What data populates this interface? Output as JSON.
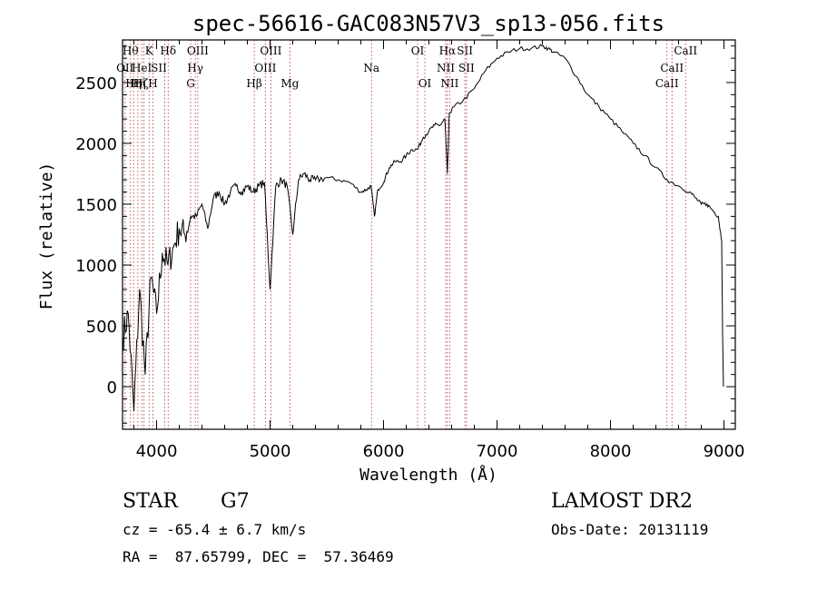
{
  "chart_data": {
    "type": "line",
    "title": "spec-56616-GAC083N57V3_sp13-056.fits",
    "xlabel": "Wavelength (Å)",
    "ylabel": "Flux (relative)",
    "xlim": [
      3700,
      9100
    ],
    "ylim": [
      -350,
      2850
    ],
    "xticks": [
      4000,
      5000,
      6000,
      7000,
      8000,
      9000
    ],
    "yticks": [
      0,
      500,
      1000,
      1500,
      2000,
      2500
    ],
    "series": [
      {
        "x": [
          3700,
          3750,
          3800,
          3850,
          3900,
          3950,
          4000,
          4050,
          4100,
          4150,
          4200,
          4250,
          4300,
          4350,
          4400,
          4450,
          4500,
          4550,
          4600,
          4650,
          4700,
          4750,
          4800,
          4850,
          4900,
          4950,
          5000,
          5050,
          5100,
          5150,
          5200,
          5250,
          5300,
          5350,
          5400,
          5500,
          5600,
          5700,
          5800,
          5850,
          5890,
          5920,
          5950,
          6000,
          6050,
          6100,
          6150,
          6200,
          6250,
          6300,
          6350,
          6400,
          6450,
          6500,
          6540,
          6563,
          6580,
          6620,
          6700,
          6800,
          6900,
          7000,
          7100,
          7200,
          7300,
          7400,
          7450,
          7500,
          7600,
          7700,
          7800,
          7900,
          8000,
          8100,
          8200,
          8300,
          8400,
          8500,
          8600,
          8700,
          8750,
          8800,
          8850,
          8900,
          8950,
          8980,
          8990,
          8995
        ],
        "y": [
          400,
          600,
          -200,
          800,
          100,
          900,
          600,
          1100,
          1000,
          1150,
          1300,
          1250,
          1400,
          1400,
          1500,
          1300,
          1550,
          1600,
          1500,
          1600,
          1650,
          1600,
          1650,
          1600,
          1650,
          1680,
          800,
          1650,
          1700,
          1650,
          1250,
          1700,
          1750,
          1700,
          1700,
          1720,
          1700,
          1680,
          1600,
          1620,
          1650,
          1400,
          1620,
          1680,
          1800,
          1850,
          1850,
          1900,
          1950,
          1950,
          2050,
          2100,
          2150,
          2150,
          2200,
          1750,
          2250,
          2300,
          2350,
          2450,
          2600,
          2700,
          2750,
          2780,
          2780,
          2800,
          2780,
          2750,
          2700,
          2550,
          2400,
          2300,
          2200,
          2100,
          2000,
          1900,
          1800,
          1700,
          1650,
          1600,
          1550,
          1500,
          1500,
          1450,
          1400,
          1200,
          300,
          0
        ]
      }
    ],
    "lines": [
      {
        "x": 3722,
        "label": "OII",
        "row": 1,
        "label_x": 3722
      },
      {
        "x": 3770,
        "label": "Hθ",
        "row": 0,
        "label_x": 3770
      },
      {
        "x": 3797,
        "label": "Hη",
        "row": 2,
        "label_x": 3797
      },
      {
        "x": 3835,
        "label": "Hη",
        "row": 2,
        "label_x": 3835
      },
      {
        "x": 3869,
        "label": "HeI",
        "row": 1,
        "label_x": 3869
      },
      {
        "x": 3889,
        "label": "Hζ",
        "row": 2,
        "label_x": 3860
      },
      {
        "x": 3934,
        "label": "K",
        "row": 0,
        "label_x": 3934
      },
      {
        "x": 3968,
        "label": "H",
        "row": 2,
        "label_x": 3968
      },
      {
        "x": 4072,
        "label": "SII",
        "row": 1,
        "label_x": 4020
      },
      {
        "x": 4102,
        "label": "Hδ",
        "row": 0,
        "label_x": 4102
      },
      {
        "x": 4300,
        "label": "G",
        "row": 2,
        "label_x": 4300
      },
      {
        "x": 4341,
        "label": "Hγ",
        "row": 1,
        "label_x": 4341
      },
      {
        "x": 4363,
        "label": "OIII",
        "row": 0,
        "label_x": 4363
      },
      {
        "x": 4861,
        "label": "Hβ",
        "row": 2,
        "label_x": 4861
      },
      {
        "x": 4959,
        "label": "OIII",
        "row": 1,
        "label_x": 4959
      },
      {
        "x": 5007,
        "label": "OIII",
        "row": 0,
        "label_x": 5007
      },
      {
        "x": 5175,
        "label": "Mg",
        "row": 2,
        "label_x": 5175
      },
      {
        "x": 5894,
        "label": "Na",
        "row": 1,
        "label_x": 5894
      },
      {
        "x": 6300,
        "label": "OI",
        "row": 0,
        "label_x": 6300
      },
      {
        "x": 6364,
        "label": "OI",
        "row": 2,
        "label_x": 6364
      },
      {
        "x": 6548,
        "label": "NII",
        "row": 1,
        "label_x": 6548
      },
      {
        "x": 6563,
        "label": "Hα",
        "row": 0,
        "label_x": 6563
      },
      {
        "x": 6583,
        "label": "NII",
        "row": 2,
        "label_x": 6583
      },
      {
        "x": 6717,
        "label": "SII",
        "row": 0,
        "label_x": 6717
      },
      {
        "x": 6731,
        "label": "SII",
        "row": 1,
        "label_x": 6731
      },
      {
        "x": 8498,
        "label": "CaII",
        "row": 2,
        "label_x": 8498
      },
      {
        "x": 8542,
        "label": "CaII",
        "row": 1,
        "label_x": 8542
      },
      {
        "x": 8662,
        "label": "CaII",
        "row": 0,
        "label_x": 8662
      }
    ]
  },
  "info": {
    "class_label": "STAR",
    "subclass": "G7",
    "survey": "LAMOST DR2",
    "cz": "cz = -65.4 ± 6.7 km/s",
    "obs_date": "Obs-Date: 20131119",
    "coords": "RA =  87.65799, DEC =  57.36469"
  }
}
